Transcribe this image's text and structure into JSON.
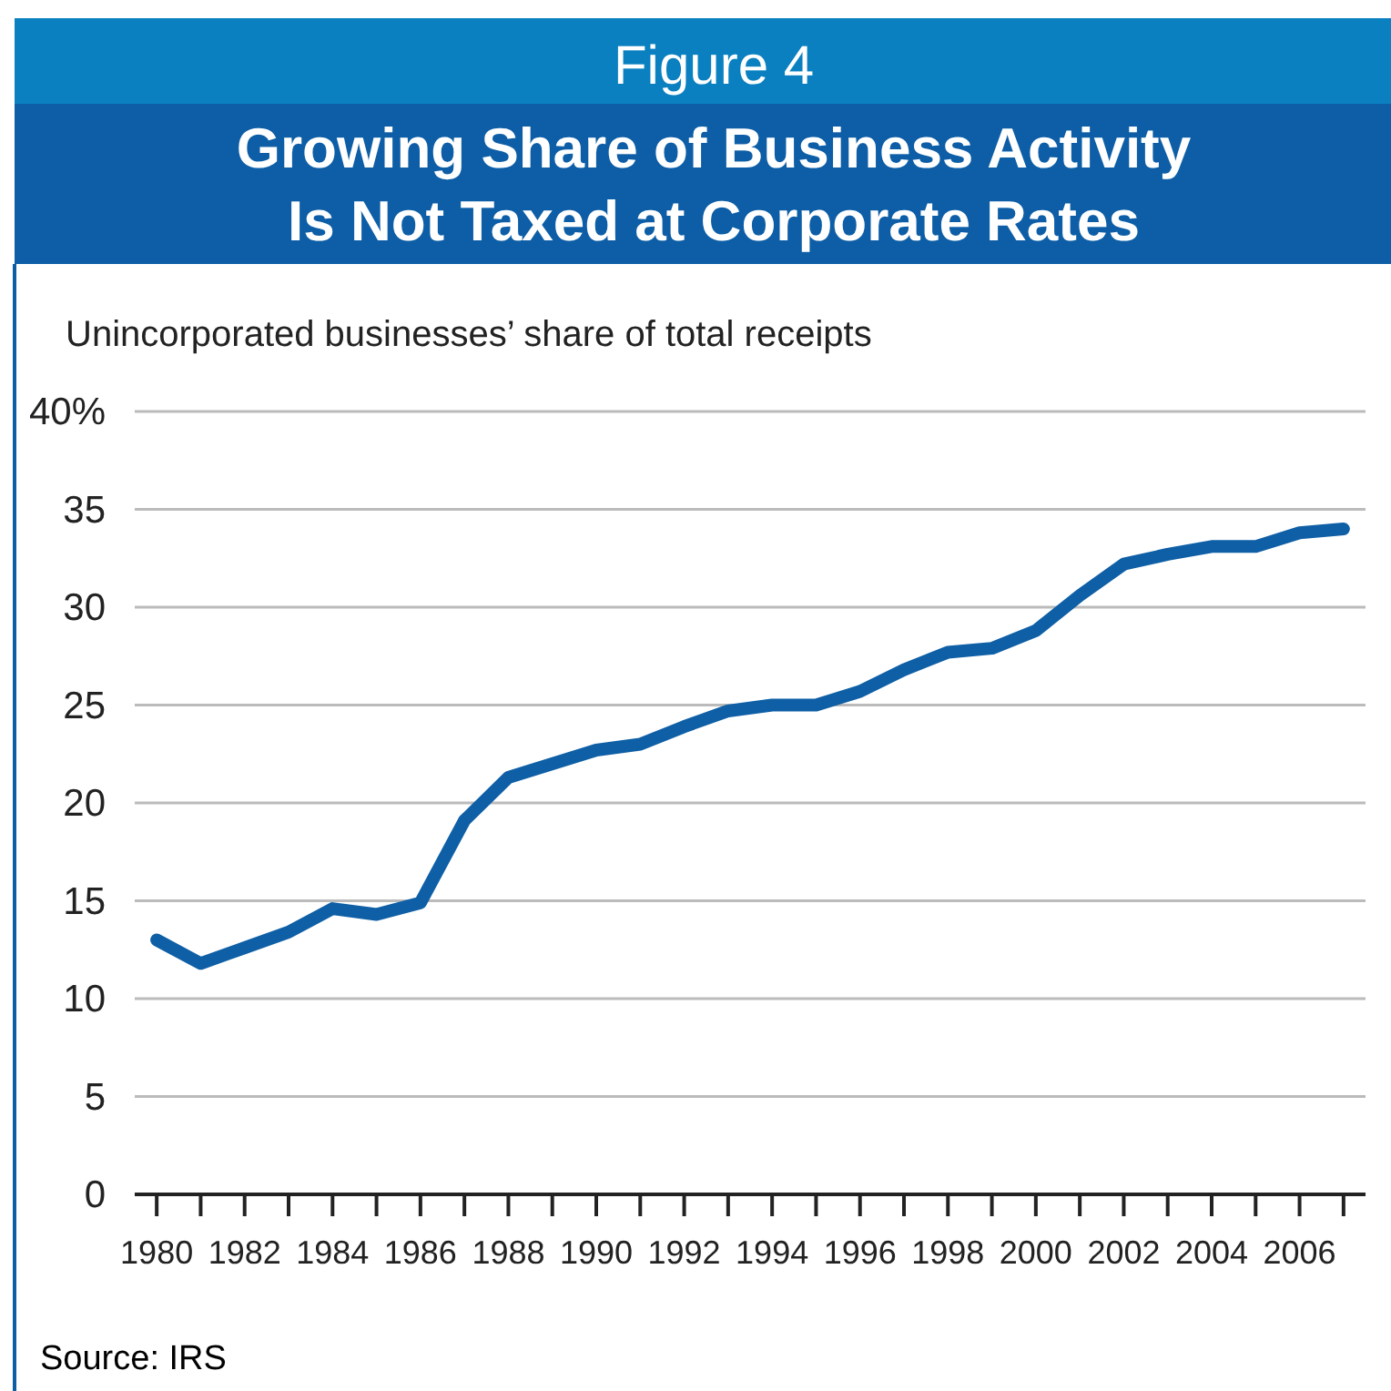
{
  "chart_data": {
    "type": "line",
    "title": "Figure 4",
    "subtitle": "Growing Share of Business Activity Is Not Taxed at Corporate Rates",
    "ylabel": "Unincorporated businesses’ share of total receipts",
    "annotations": [
      "Source: IRS"
    ],
    "x": [
      1980,
      1981,
      1982,
      1983,
      1984,
      1985,
      1986,
      1987,
      1988,
      1989,
      1990,
      1991,
      1992,
      1993,
      1994,
      1995,
      1996,
      1997,
      1998,
      1999,
      2000,
      2001,
      2002,
      2003,
      2004,
      2005,
      2006,
      2007
    ],
    "series": [
      {
        "color": "#0e5fa6",
        "values": [
          13.0,
          11.8,
          12.6,
          13.4,
          14.6,
          14.3,
          14.9,
          19.1,
          21.3,
          22.0,
          22.7,
          23.0,
          23.9,
          24.7,
          25.0,
          25.0,
          25.7,
          26.8,
          27.7,
          27.9,
          28.8,
          30.6,
          32.2,
          32.7,
          33.1,
          33.1,
          33.8,
          34.0
        ]
      }
    ],
    "xlim": [
      1979.5,
      2007.5
    ],
    "xticks": [
      1980,
      {
        "value": 1981,
        "label": null
      },
      1982,
      {
        "value": 1983,
        "label": null
      },
      1984,
      {
        "value": 1985,
        "label": null
      },
      1986,
      {
        "value": 1987,
        "label": null
      },
      1988,
      {
        "value": 1989,
        "label": null
      },
      1990,
      {
        "value": 1991,
        "label": null
      },
      1992,
      {
        "value": 1993,
        "label": null
      },
      1994,
      {
        "value": 1995,
        "label": null
      },
      1996,
      {
        "value": 1997,
        "label": null
      },
      1998,
      {
        "value": 1999,
        "label": null
      },
      2000,
      {
        "value": 2001,
        "label": null
      },
      2002,
      {
        "value": 2003,
        "label": null
      },
      2004,
      {
        "value": 2005,
        "label": null
      },
      2006,
      {
        "value": 2007,
        "label": null
      }
    ],
    "ylim": [
      0,
      40
    ],
    "yticks": [
      0,
      5,
      10,
      15,
      20,
      25,
      30,
      35,
      {
        "value": 40,
        "label": "40%"
      }
    ],
    "grid": "y",
    "marker": "none",
    "line_style": "solid"
  }
}
